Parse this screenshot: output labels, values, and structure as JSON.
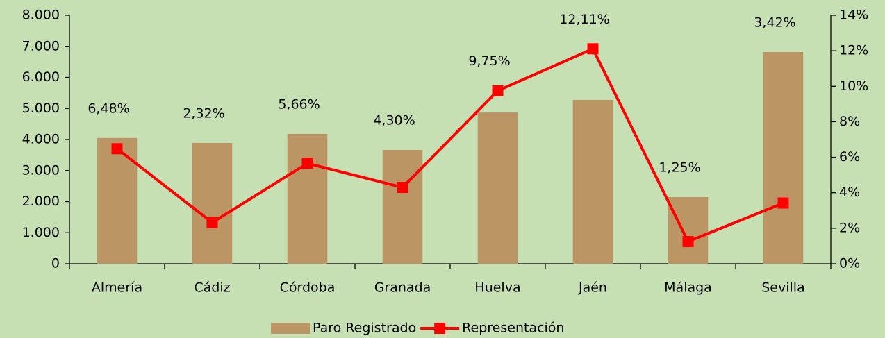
{
  "chart_data": {
    "type": "bar_line",
    "categories": [
      "Almería",
      "Cádiz",
      "Córdoba",
      "Granada",
      "Huelva",
      "Jaén",
      "Málaga",
      "Sevilla"
    ],
    "series": [
      {
        "name": "Paro Registrado",
        "type": "bar",
        "color": "#bc9564",
        "values": [
          4050,
          3890,
          4180,
          3665,
          4870,
          5275,
          2145,
          6815
        ]
      },
      {
        "name": "Representación",
        "type": "line",
        "axis": "y2",
        "color": "#ff0000",
        "values": [
          6.48,
          2.32,
          5.66,
          4.3,
          9.75,
          12.11,
          1.25,
          3.42
        ],
        "value_labels": [
          "6,48%",
          "2,32%",
          "5,66%",
          "4,30%",
          "9,75%",
          "12,11%",
          "1,25%",
          "3,42%"
        ]
      }
    ],
    "ylim": [
      0,
      8000
    ],
    "yticks": [
      0,
      {
        "value": 1000,
        "label": "1.000"
      },
      {
        "value": 2000,
        "label": "2.000"
      },
      {
        "value": 3000,
        "label": "3.000"
      },
      {
        "value": 4000,
        "label": "4.000"
      },
      {
        "value": 5000,
        "label": "5.000"
      },
      {
        "value": 6000,
        "label": "6.000"
      },
      {
        "value": 7000,
        "label": "7.000"
      },
      {
        "value": 8000,
        "label": "8.000"
      }
    ],
    "y2lim": [
      0,
      14
    ],
    "y2ticks": [
      {
        "value": 0,
        "label": "0%"
      },
      {
        "value": 2,
        "label": "2%"
      },
      {
        "value": 4,
        "label": "4%"
      },
      {
        "value": 6,
        "label": "6%"
      },
      {
        "value": 8,
        "label": "8%"
      },
      {
        "value": 10,
        "label": "10%"
      },
      {
        "value": 12,
        "label": "12%"
      },
      {
        "value": 14,
        "label": "14%"
      }
    ],
    "legend": "bottom"
  }
}
